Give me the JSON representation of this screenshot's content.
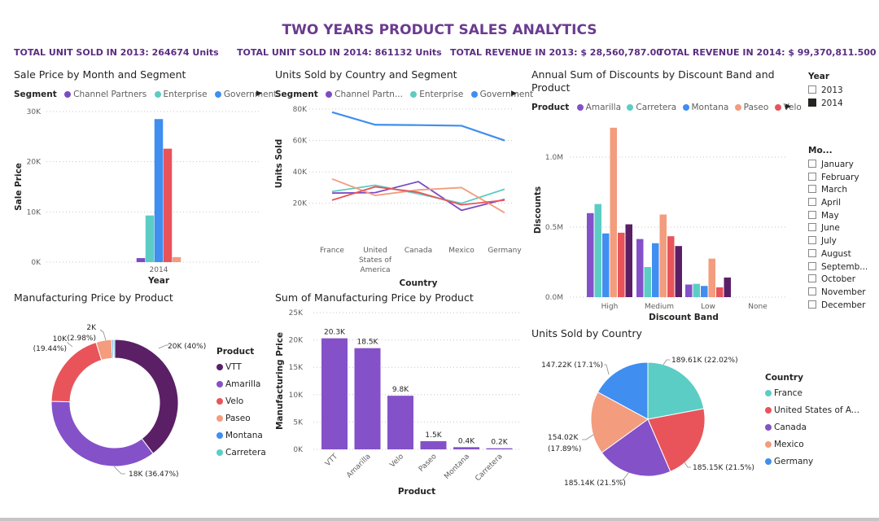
{
  "title": "TWO YEARS PRODUCT SALES ANALYTICS",
  "kpis": [
    "TOTAL UNIT SOLD IN 2013: 264674 Units",
    "TOTAL UNIT SOLD IN 2014: 861132 Units",
    "TOTAL REVENUE IN 2013: $ 28,560,787.00",
    "TOTAL REVENUE IN 2014: $ 99,370,811.500"
  ],
  "colors": {
    "channel_partners": "#7b4bc4",
    "enterprise": "#5bcdc5",
    "government": "#3f8ef0",
    "line_orange": "#f39c7e",
    "line_red": "#e8545a",
    "amarilla": "#8451c9",
    "carretera": "#5bcdc5",
    "montana": "#3f8ef0",
    "paseo": "#f39c7e",
    "velo": "#e8545a",
    "vtt": "#5b1f66"
  },
  "year_slicer": {
    "title": "Year",
    "options": [
      {
        "label": "2013",
        "checked": false
      },
      {
        "label": "2014",
        "checked": true
      }
    ]
  },
  "month_slicer": {
    "title": "Mo...",
    "options": [
      "January",
      "February",
      "March",
      "April",
      "May",
      "June",
      "July",
      "August",
      "Septemb...",
      "October",
      "November",
      "December"
    ]
  },
  "chart_data": [
    {
      "id": "sale_price",
      "type": "bar",
      "title": "Sale Price by Month and Segment",
      "legend_title": "Segment",
      "legend_items": [
        "Channel Partners",
        "Enterprise",
        "Government"
      ],
      "xlabel": "Year",
      "ylabel": "Sale Price",
      "categories": [
        "2014"
      ],
      "ylim": [
        0,
        30000
      ],
      "yticks": [
        "0K",
        "10K",
        "20K",
        "30K"
      ],
      "series": [
        {
          "name": "Channel Partners",
          "color": "#7b4bc4",
          "values": [
            800
          ]
        },
        {
          "name": "Enterprise",
          "color": "#5bcdc5",
          "values": [
            9300
          ]
        },
        {
          "name": "Government",
          "color": "#3f8ef0",
          "values": [
            28500
          ]
        },
        {
          "name": "",
          "color": "#e8545a",
          "values": [
            22600
          ]
        },
        {
          "name": "",
          "color": "#f39c7e",
          "values": [
            1000
          ]
        }
      ]
    },
    {
      "id": "units_country",
      "type": "line",
      "title": "Units Sold by Country and Segment",
      "legend_title": "Segment",
      "legend_items": [
        "Channel Partn...",
        "Enterprise",
        "Government"
      ],
      "xlabel": "Country",
      "ylabel": "Units Sold",
      "categories": [
        [
          "France"
        ],
        [
          "United",
          "States of",
          "America"
        ],
        [
          "Canada"
        ],
        [
          "Mexico"
        ],
        [
          "Germany"
        ]
      ],
      "ylim": [
        10000,
        80000
      ],
      "yticks": [
        "20K",
        "40K",
        "60K",
        "80K"
      ],
      "series": [
        {
          "name": "Government",
          "color": "#3f8ef0",
          "values": [
            78000,
            70000,
            69800,
            69400,
            60000
          ]
        },
        {
          "name": "Channel Partners",
          "color": "#7b4bc4",
          "values": [
            26500,
            26800,
            33800,
            15500,
            22500
          ]
        },
        {
          "name": "Enterprise",
          "color": "#5bcdc5",
          "values": [
            27500,
            31500,
            26000,
            20000,
            29000
          ]
        },
        {
          "name": "",
          "color": "#f39c7e",
          "values": [
            35500,
            25000,
            28500,
            30000,
            14000
          ]
        },
        {
          "name": "",
          "color": "#e8545a",
          "values": [
            22000,
            30500,
            27000,
            19000,
            22000
          ]
        }
      ]
    },
    {
      "id": "discounts",
      "type": "bar",
      "title_lines": [
        "Annual Sum of Discounts by Discount Band and",
        "Product"
      ],
      "legend_title": "Product",
      "legend_items": [
        "Amarilla",
        "Carretera",
        "Montana",
        "Paseo",
        "Velo"
      ],
      "xlabel": "Discount Band",
      "ylabel": "Discounts",
      "categories": [
        "High",
        "Medium",
        "Low",
        "None"
      ],
      "ylim": [
        0,
        1250000
      ],
      "yticks": [
        "0.0M",
        "0.5M",
        "1.0M"
      ],
      "series": [
        {
          "name": "Amarilla",
          "color": "#8451c9",
          "values": [
            600000,
            415000,
            90000,
            0
          ]
        },
        {
          "name": "Carretera",
          "color": "#5bcdc5",
          "values": [
            665000,
            215000,
            95000,
            0
          ]
        },
        {
          "name": "Montana",
          "color": "#3f8ef0",
          "values": [
            455000,
            385000,
            80000,
            0
          ]
        },
        {
          "name": "Paseo",
          "color": "#f39c7e",
          "values": [
            1210000,
            590000,
            275000,
            0
          ]
        },
        {
          "name": "Velo",
          "color": "#e8545a",
          "values": [
            460000,
            435000,
            70000,
            0
          ]
        },
        {
          "name": "",
          "color": "#5b1f66",
          "values": [
            520000,
            365000,
            140000,
            0
          ]
        }
      ]
    },
    {
      "id": "mfg_donut",
      "type": "pie",
      "title": "Manufacturing Price by Product",
      "legend_title": "Product",
      "slices": [
        {
          "name": "VTT",
          "value": 20000,
          "label": "20K (40%)",
          "color": "#5b1f66"
        },
        {
          "name": "Amarilla",
          "value": 18000,
          "label": "18K (36.47%)",
          "color": "#8451c9"
        },
        {
          "name": "Velo",
          "value": 10000,
          "label_lines": [
            "10K",
            "(19.44%)"
          ],
          "color": "#e8545a"
        },
        {
          "name": "Paseo",
          "value": 2000,
          "label_lines": [
            "2K",
            "(2.98%)"
          ],
          "color": "#f39c7e"
        },
        {
          "name": "Montana",
          "value": 200,
          "color": "#3f8ef0"
        },
        {
          "name": "Carretera",
          "value": 200,
          "color": "#5bcdc5"
        }
      ]
    },
    {
      "id": "mfg_bar",
      "type": "bar",
      "title": "Sum of Manufacturing Price by Product",
      "xlabel": "Product",
      "ylabel": "Manufacturing Price",
      "categories": [
        "VTT",
        "Amarilla",
        "Velo",
        "Paseo",
        "Montana",
        "Carretera"
      ],
      "values": [
        20300,
        18500,
        9800,
        1500,
        400,
        200
      ],
      "value_labels": [
        "20.3K",
        "18.5K",
        "9.8K",
        "1.5K",
        "0.4K",
        "0.2K"
      ],
      "ylim": [
        0,
        25000
      ],
      "yticks": [
        "0K",
        "5K",
        "10K",
        "15K",
        "20K",
        "25K"
      ],
      "color": "#8451c9"
    },
    {
      "id": "units_pie",
      "type": "pie",
      "title": "Units Sold by Country",
      "legend_title": "Country",
      "slices": [
        {
          "name": "France",
          "value": 189.61,
          "label": "189.61K (22.02%)",
          "color": "#5bcdc5"
        },
        {
          "name": "United States of A...",
          "value": 185.15,
          "label": "185.15K (21.5%)",
          "color": "#e8545a"
        },
        {
          "name": "Canada",
          "value": 185.14,
          "label": "185.14K (21.5%)",
          "color": "#8451c9"
        },
        {
          "name": "Mexico",
          "value": 154.02,
          "label_lines": [
            "154.02K",
            "(17.89%)"
          ],
          "color": "#f39c7e"
        },
        {
          "name": "Germany",
          "value": 147.22,
          "label": "147.22K (17.1%)",
          "color": "#3f8ef0"
        }
      ]
    }
  ]
}
